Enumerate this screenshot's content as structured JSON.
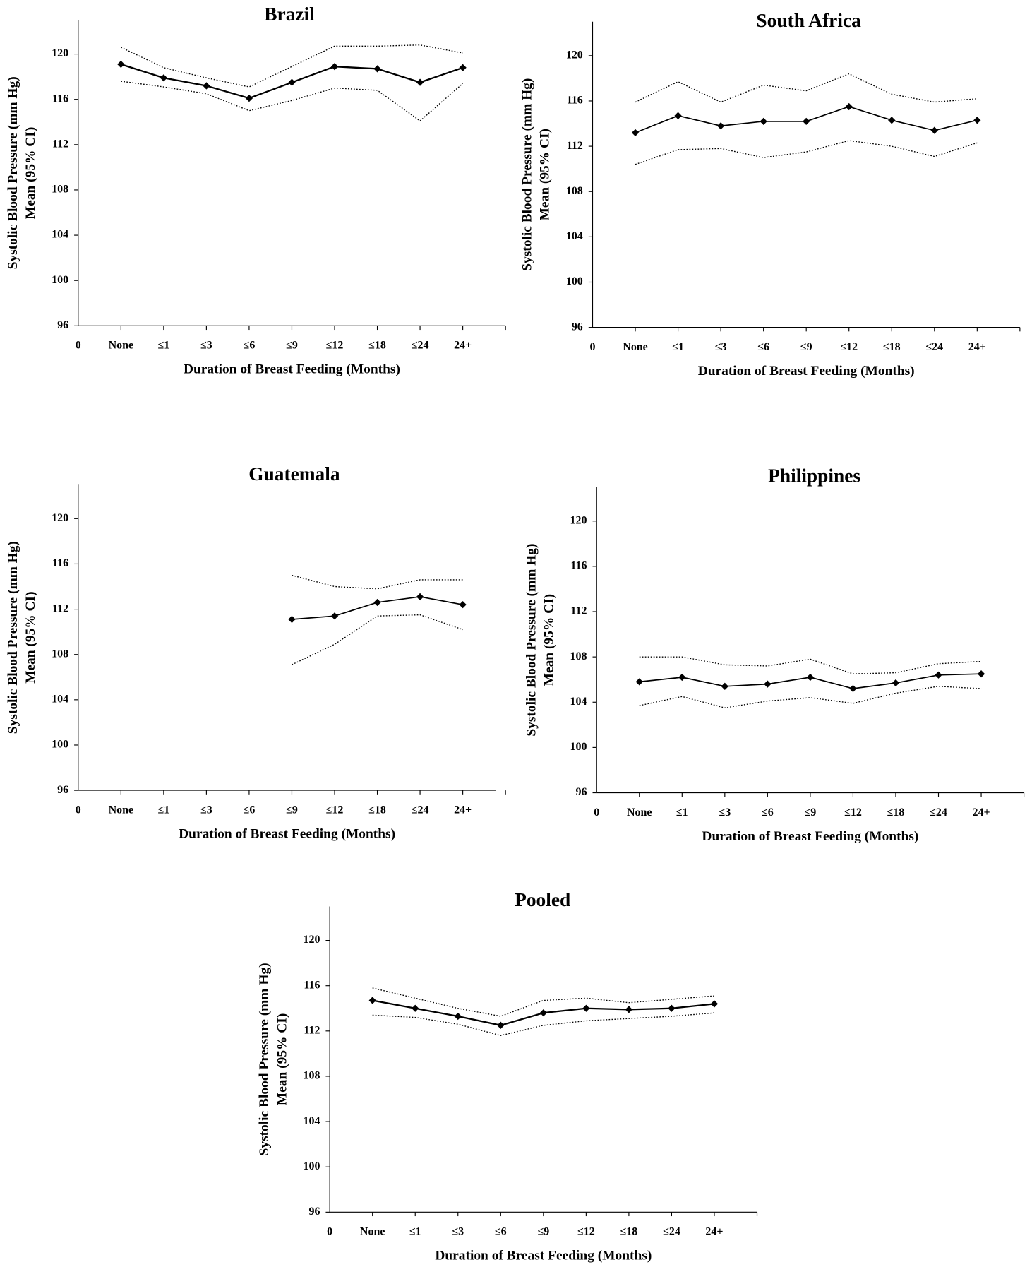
{
  "chart_data": [
    {
      "type": "line",
      "title": "Brazil",
      "x_label": "Duration of Breast Feeding (Months)",
      "y_label": [
        "Systolic Blood Pressure (mm Hg)",
        "Mean (95% CI)"
      ],
      "categories": [
        "0",
        "None",
        "≤1",
        "≤3",
        "≤6",
        "≤9",
        "≤12",
        "≤18",
        "≤24",
        "24+"
      ],
      "ylim": [
        96,
        123
      ],
      "yticks": [
        96,
        100,
        104,
        108,
        112,
        116,
        120
      ],
      "series": [
        {
          "color": "#000000",
          "style": "solid",
          "values": [
            null,
            119.1,
            117.9,
            117.2,
            116.1,
            117.5,
            118.9,
            118.7,
            117.5,
            118.8
          ]
        },
        {
          "color": "#000000",
          "style": "dotted",
          "values": [
            null,
            120.6,
            118.8,
            117.9,
            117.1,
            118.9,
            120.7,
            120.7,
            120.8,
            120.1
          ]
        },
        {
          "color": "#000000",
          "style": "dotted",
          "values": [
            null,
            117.6,
            117.1,
            116.5,
            115.0,
            115.9,
            117.0,
            116.8,
            114.1,
            117.4
          ]
        }
      ]
    },
    {
      "type": "line",
      "title": "South Africa",
      "x_label": "Duration of Breast Feeding (Months)",
      "y_label": [
        "Systolic Blood Pressure (mm Hg)",
        "Mean (95% CI)"
      ],
      "categories": [
        "0",
        "None",
        "≤1",
        "≤3",
        "≤6",
        "≤9",
        "≤12",
        "≤18",
        "≤24",
        "24+"
      ],
      "ylim": [
        96,
        123
      ],
      "yticks": [
        96,
        100,
        104,
        108,
        112,
        116,
        120
      ],
      "series": [
        {
          "color": "#000000",
          "style": "solid",
          "values": [
            null,
            113.2,
            114.7,
            113.8,
            114.2,
            114.2,
            115.5,
            114.3,
            113.4,
            114.3
          ]
        },
        {
          "color": "#000000",
          "style": "dotted",
          "values": [
            null,
            115.9,
            117.7,
            115.9,
            117.4,
            116.9,
            118.4,
            116.6,
            115.9,
            116.2
          ]
        },
        {
          "color": "#000000",
          "style": "dotted",
          "values": [
            null,
            110.4,
            111.7,
            111.8,
            111.0,
            111.5,
            112.5,
            112.0,
            111.1,
            112.3
          ]
        }
      ]
    },
    {
      "type": "line",
      "title": "Guatemala",
      "x_label": "Duration of Breast Feeding (Months)",
      "y_label": [
        "Systolic Blood Pressure (mm Hg)",
        "Mean (95% CI)"
      ],
      "categories": [
        "0",
        "None",
        "≤1",
        "≤3",
        "≤6",
        "≤9",
        "≤12",
        "≤18",
        "≤24",
        "24+"
      ],
      "ylim": [
        96,
        123
      ],
      "yticks": [
        96,
        100,
        104,
        108,
        112,
        116,
        120
      ],
      "series": [
        {
          "color": "#000000",
          "style": "solid",
          "values": [
            null,
            null,
            null,
            null,
            null,
            111.1,
            111.4,
            112.6,
            113.1,
            112.4
          ]
        },
        {
          "color": "#000000",
          "style": "dotted",
          "values": [
            null,
            null,
            null,
            null,
            null,
            115.0,
            114.0,
            113.8,
            114.6,
            114.6
          ]
        },
        {
          "color": "#000000",
          "style": "dotted",
          "values": [
            null,
            null,
            null,
            null,
            null,
            107.1,
            108.9,
            111.4,
            111.5,
            110.2
          ]
        }
      ]
    },
    {
      "type": "line",
      "title": "Philippines",
      "x_label": "Duration of Breast Feeding (Months)",
      "y_label": [
        "Systolic Blood Pressure (mm Hg)",
        "Mean (95% CI)"
      ],
      "categories": [
        "0",
        "None",
        "≤1",
        "≤3",
        "≤6",
        "≤9",
        "≤12",
        "≤18",
        "≤24",
        "24+"
      ],
      "ylim": [
        96,
        123
      ],
      "yticks": [
        96,
        100,
        104,
        108,
        112,
        116,
        120
      ],
      "series": [
        {
          "color": "#000000",
          "style": "solid",
          "values": [
            null,
            105.8,
            106.2,
            105.4,
            105.6,
            106.2,
            105.2,
            105.7,
            106.4,
            106.5
          ]
        },
        {
          "color": "#000000",
          "style": "dotted",
          "values": [
            null,
            108.0,
            108.0,
            107.3,
            107.2,
            107.8,
            106.5,
            106.6,
            107.4,
            107.6
          ]
        },
        {
          "color": "#000000",
          "style": "dotted",
          "values": [
            null,
            103.7,
            104.5,
            103.5,
            104.1,
            104.4,
            103.9,
            104.8,
            105.4,
            105.2
          ]
        }
      ]
    },
    {
      "type": "line",
      "title": "Pooled",
      "x_label": "Duration of Breast Feeding (Months)",
      "y_label": [
        "Systolic Blood Pressure (mm Hg)",
        "Mean (95% CI)"
      ],
      "categories": [
        "0",
        "None",
        "≤1",
        "≤3",
        "≤6",
        "≤9",
        "≤12",
        "≤18",
        "≤24",
        "24+"
      ],
      "ylim": [
        96,
        123
      ],
      "yticks": [
        96,
        100,
        104,
        108,
        112,
        116,
        120
      ],
      "series": [
        {
          "color": "#000000",
          "style": "solid",
          "values": [
            null,
            114.7,
            114.0,
            113.3,
            112.5,
            113.6,
            114.0,
            113.9,
            114.0,
            114.4
          ]
        },
        {
          "color": "#000000",
          "style": "dotted",
          "values": [
            null,
            115.8,
            114.9,
            114.0,
            113.3,
            114.7,
            114.9,
            114.5,
            114.8,
            115.1
          ]
        },
        {
          "color": "#000000",
          "style": "dotted",
          "values": [
            null,
            113.4,
            113.2,
            112.6,
            111.6,
            112.5,
            112.9,
            113.1,
            113.3,
            113.6
          ]
        }
      ]
    }
  ]
}
